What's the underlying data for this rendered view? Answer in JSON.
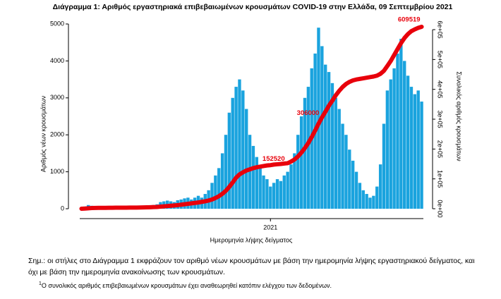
{
  "title": "Διάγραμμα 1: Αριθμός εργαστηριακά επιβεβαιωμένων κρουσμάτων COVID-19 στην Ελλάδα, 09 Σεπτεμβρίου 2021",
  "chart_data": {
    "type": "bar",
    "x_label": "Ημερομηνία λήψης δείγματος",
    "y_label": "Αριθμός νέων κρουσμάτων",
    "y2_label": "Συνολικός αριθμός κρουσμάτων",
    "categories": [
      null,
      null,
      null,
      null,
      null,
      null,
      null,
      null,
      null,
      null,
      null,
      null,
      null,
      null,
      null,
      null,
      null,
      null,
      null,
      null,
      null,
      null,
      null,
      null,
      null,
      null,
      null,
      null,
      null,
      null,
      null,
      null,
      null,
      null,
      null,
      null,
      null,
      null,
      null,
      null,
      null,
      null,
      null,
      null,
      null,
      null,
      null,
      null,
      null,
      null,
      null,
      null,
      null,
      null,
      null,
      "2021",
      null,
      null,
      null,
      null,
      null,
      null,
      null,
      null,
      null,
      null,
      null,
      null,
      null,
      null,
      null,
      null,
      null,
      null,
      null,
      null,
      null,
      null,
      null,
      null,
      null,
      null,
      null,
      null,
      null,
      null,
      null,
      null,
      null,
      null,
      null,
      null,
      null,
      null,
      null,
      null,
      null,
      null,
      null,
      null
    ],
    "ylim": [
      0,
      5000
    ],
    "yticks": [
      0,
      1000,
      2000,
      3000,
      4000,
      5000
    ],
    "y2lim": [
      0,
      619000
    ],
    "y2ticks": [
      {
        "value": 0,
        "label": "0e+00"
      },
      {
        "value": 100000,
        "label": "1e+05"
      },
      {
        "value": 200000,
        "label": "2e+05"
      },
      {
        "value": 300000,
        "label": "3e+05"
      },
      {
        "value": 400000,
        "label": "4e+05"
      },
      {
        "value": 500000,
        "label": "5e+05"
      },
      {
        "value": 600000,
        "label": "6e+05"
      }
    ],
    "series": [
      {
        "type": "bar",
        "color": "#1aa3de",
        "values": [
          20,
          60,
          100,
          80,
          60,
          40,
          30,
          20,
          15,
          15,
          20,
          20,
          15,
          10,
          12,
          15,
          20,
          25,
          30,
          40,
          60,
          100,
          120,
          180,
          200,
          220,
          200,
          180,
          230,
          250,
          280,
          300,
          250,
          300,
          350,
          300,
          400,
          500,
          700,
          900,
          1100,
          1500,
          2000,
          2600,
          3000,
          3300,
          3500,
          3200,
          2700,
          2000,
          1700,
          1400,
          1100,
          900,
          800,
          600,
          700,
          800,
          750,
          900,
          1000,
          1200,
          1500,
          2000,
          2500,
          3000,
          3300,
          3800,
          4200,
          4900,
          4400,
          3900,
          3700,
          3400,
          3000,
          2700,
          2300,
          2000,
          1600,
          1300,
          1000,
          700,
          500,
          400,
          300,
          350,
          600,
          1200,
          2300,
          3200,
          3500,
          3800,
          4200,
          4600,
          4000,
          3600,
          3300,
          3100,
          3200,
          2900
        ]
      },
      {
        "type": "line",
        "axis": "y2",
        "color": "#e8000b",
        "values": [
          100,
          500,
          1500,
          2300,
          2700,
          2900,
          3000,
          3100,
          3200,
          3300,
          3400,
          3500,
          3550,
          3600,
          3700,
          3800,
          3900,
          4100,
          4300,
          4600,
          5000,
          5500,
          6000,
          7000,
          8000,
          9000,
          10000,
          11000,
          12000,
          13500,
          15000,
          16500,
          18000,
          19500,
          21000,
          23000,
          25000,
          27500,
          31000,
          36000,
          42000,
          50000,
          60000,
          73000,
          88000,
          104000,
          115000,
          122000,
          128000,
          132000,
          136000,
          139000,
          141000,
          143000,
          145000,
          146000,
          148000,
          149000,
          150000,
          151500,
          152520,
          158000,
          165000,
          175000,
          188000,
          203000,
          220000,
          240000,
          262000,
          285000,
          306000,
          325000,
          345000,
          362000,
          380000,
          395000,
          408000,
          418000,
          425000,
          430000,
          433000,
          435000,
          437000,
          439000,
          441000,
          443000,
          446000,
          452000,
          462000,
          478000,
          495000,
          515000,
          535000,
          555000,
          572000,
          585000,
          595000,
          601000,
          606000,
          609519
        ],
        "value_labels": [
          null,
          null,
          null,
          null,
          null,
          null,
          null,
          null,
          null,
          null,
          null,
          null,
          null,
          null,
          null,
          null,
          null,
          null,
          null,
          null,
          null,
          null,
          null,
          null,
          null,
          null,
          null,
          null,
          null,
          null,
          null,
          null,
          null,
          null,
          null,
          null,
          null,
          null,
          null,
          null,
          null,
          null,
          null,
          null,
          null,
          null,
          null,
          null,
          null,
          null,
          null,
          null,
          null,
          null,
          null,
          null,
          null,
          null,
          null,
          null,
          "152520",
          null,
          null,
          null,
          null,
          null,
          null,
          null,
          null,
          null,
          "306000",
          null,
          null,
          null,
          null,
          null,
          null,
          null,
          null,
          null,
          null,
          null,
          null,
          null,
          null,
          null,
          null,
          null,
          null,
          null,
          null,
          null,
          null,
          null,
          null,
          null,
          null,
          null,
          null,
          "609519"
        ]
      }
    ]
  },
  "note": "Σημ.: οι στήλες στο Διάγραμμα 1 εκφράζουν τον αριθμό νέων κρουσμάτων με βάση την ημερομηνία λήψης εργαστηριακού δείγματος, και όχι με βάση την ημερομηνία ανακοίνωσης των κρουσμάτων.",
  "footnote": {
    "marker": "1",
    "text": "Ο συνολικός αριθμός επιβεβαιωμένων κρουσμάτων έχει αναθεωρηθεί κατόπιν ελέγχου των δεδομένων."
  }
}
